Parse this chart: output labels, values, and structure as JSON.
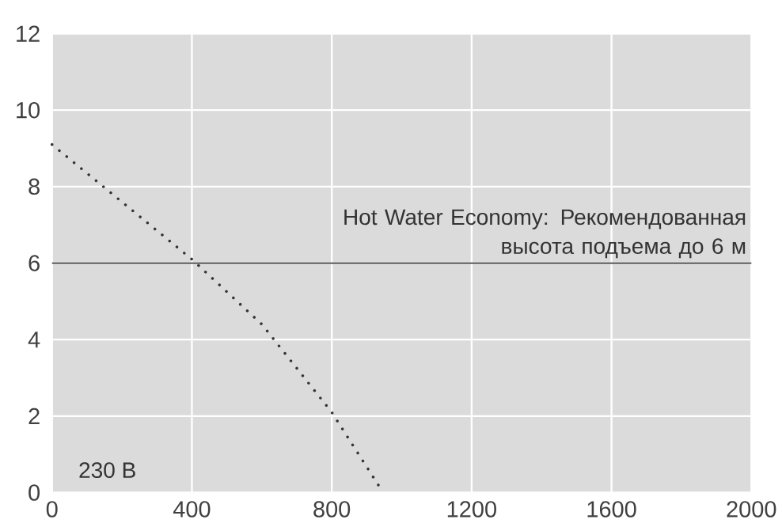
{
  "chart_data": {
    "type": "line",
    "x": [
      0,
      200,
      400,
      600,
      800,
      940
    ],
    "series": [
      {
        "color": "#333333",
        "values": [
          9.1,
          7.6,
          6.1,
          4.4,
          2.1,
          0.1
        ]
      }
    ],
    "xlim": [
      0,
      2000
    ],
    "xticks": [
      0,
      400,
      800,
      1200,
      1600,
      2000
    ],
    "ylim": [
      0,
      12
    ],
    "yticks": [
      0,
      2,
      4,
      6,
      8,
      10,
      12
    ],
    "grid": true,
    "line_style": "dotted",
    "marker": "none",
    "ref_lines": [
      {
        "axis": "y",
        "value": 6,
        "label": "Hot Water Economy: Рекомендованная высота подъема до 6 м",
        "color": "#222222"
      }
    ],
    "annotations": [
      "230 В"
    ]
  }
}
